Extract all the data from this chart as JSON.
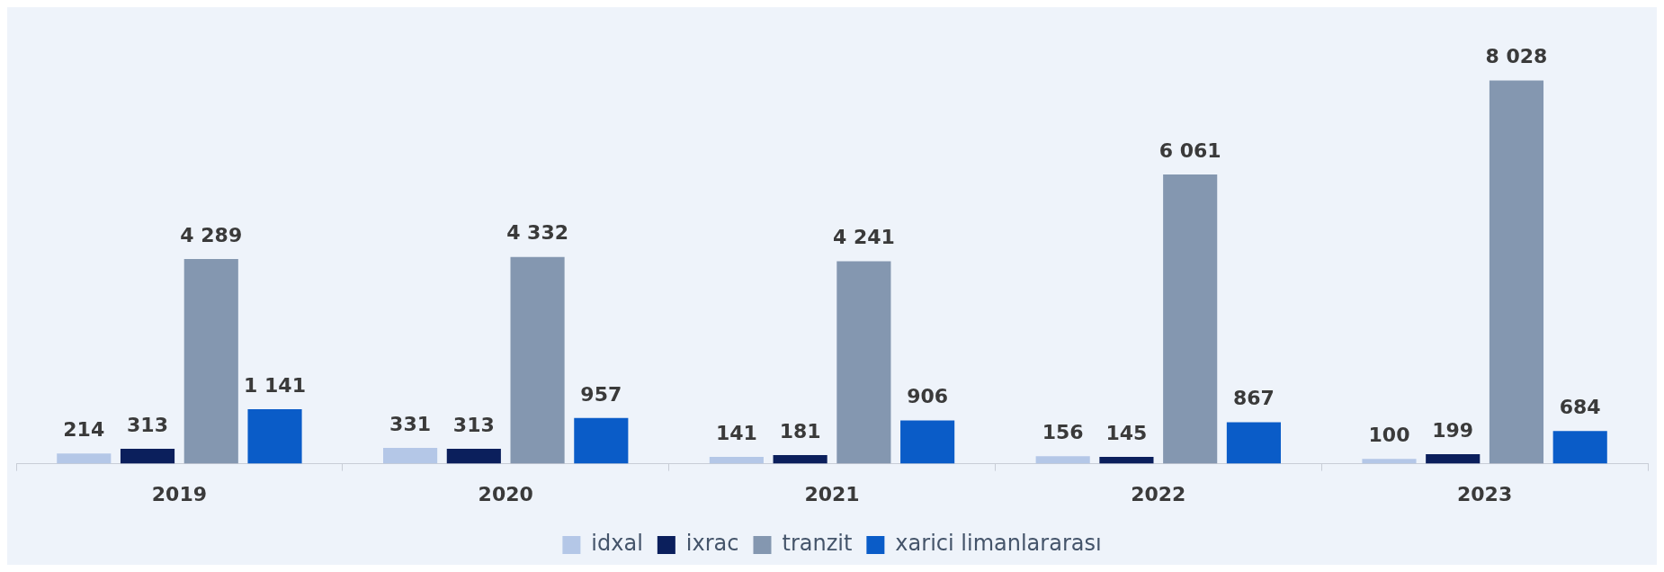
{
  "chart_data": {
    "type": "bar",
    "categories": [
      "2019",
      "2020",
      "2021",
      "2022",
      "2023"
    ],
    "series": [
      {
        "name": "idxal",
        "color": "#b4c7e7",
        "values": [
          214,
          331,
          141,
          156,
          100
        ],
        "value_labels": [
          "214",
          "331",
          "141",
          "156",
          "100"
        ]
      },
      {
        "name": "ixrac",
        "color": "#0b1f5c",
        "values": [
          313,
          313,
          181,
          145,
          199
        ],
        "value_labels": [
          "313",
          "313",
          "181",
          "145",
          "199"
        ]
      },
      {
        "name": "tranzit",
        "color": "#8497b0",
        "values": [
          4289,
          4332,
          4241,
          6061,
          8028
        ],
        "value_labels": [
          "4 289",
          "4 332",
          "4 241",
          "6 061",
          "8 028"
        ]
      },
      {
        "name": "xarici limanlararası",
        "color": "#0a5cc8",
        "values": [
          1141,
          957,
          906,
          867,
          684
        ],
        "value_labels": [
          "1 141",
          "957",
          "906",
          "867",
          "684"
        ]
      }
    ],
    "legend": "bottom",
    "grid": false
  }
}
